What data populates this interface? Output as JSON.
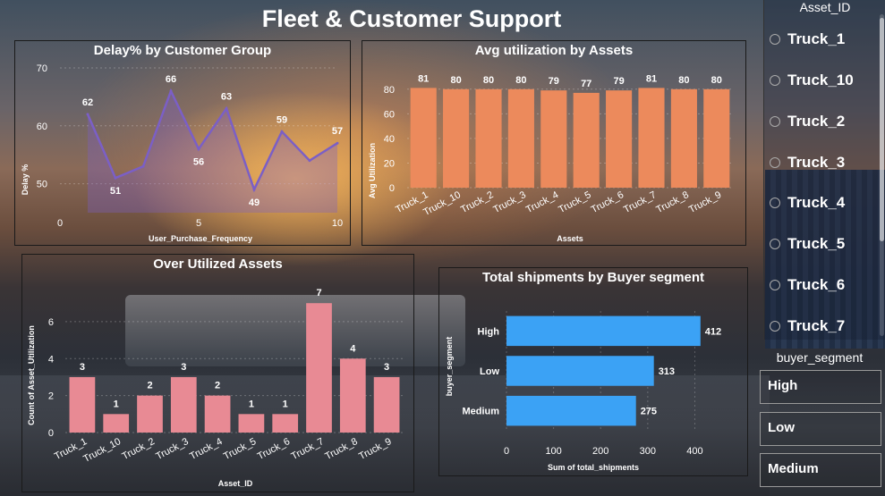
{
  "dashboard": {
    "title": "Fleet & Customer Support"
  },
  "delay_chart": {
    "title": "Delay% by Customer Group",
    "ylabel": "Delay %",
    "xlabel": "User_Purchase_Frequency",
    "y_ticks": [
      "50",
      "60",
      "70"
    ],
    "x_ticks": [
      "0",
      "5",
      "10"
    ],
    "chart_data": {
      "type": "area",
      "x": [
        1,
        2,
        3,
        4,
        5,
        6,
        7,
        8,
        9,
        10
      ],
      "values": [
        62,
        51,
        53,
        66,
        56,
        63,
        49,
        59,
        54,
        57
      ],
      "data_labels": [
        "62",
        "51",
        "",
        "66",
        "56",
        "63",
        "49",
        "59",
        "",
        "57"
      ],
      "xlim": [
        0,
        10
      ],
      "ylim": [
        45,
        70
      ],
      "color": "#7b5fc6"
    }
  },
  "util_chart": {
    "title": "Avg utilization by Assets",
    "ylabel": "Avg Utilization",
    "xlabel": "Assets",
    "y_ticks": [
      "0",
      "20",
      "40",
      "60",
      "80"
    ],
    "chart_data": {
      "type": "bar",
      "categories": [
        "Truck_1",
        "Truck_10",
        "Truck_2",
        "Truck_3",
        "Truck_4",
        "Truck_5",
        "Truck_6",
        "Truck_7",
        "Truck_8",
        "Truck_9"
      ],
      "values": [
        81,
        80,
        80,
        80,
        79,
        77,
        79,
        81,
        80,
        80
      ],
      "ylim": [
        0,
        90
      ],
      "color": "#ec8a5c"
    }
  },
  "over_chart": {
    "title": "Over Utilized Assets",
    "ylabel": "Count of Asset_Utilization",
    "xlabel": "Asset_ID",
    "y_ticks": [
      "0",
      "2",
      "4",
      "6"
    ],
    "chart_data": {
      "type": "bar",
      "categories": [
        "Truck_1",
        "Truck_10",
        "Truck_2",
        "Truck_3",
        "Truck_4",
        "Truck_5",
        "Truck_6",
        "Truck_7",
        "Truck_8",
        "Truck_9"
      ],
      "values": [
        3,
        1,
        2,
        3,
        2,
        1,
        1,
        7,
        4,
        3
      ],
      "ylim": [
        0,
        7.3
      ],
      "color": "#e88a94"
    }
  },
  "ship_chart": {
    "title": "Total shipments by Buyer segment",
    "ylabel": "buyer_segment",
    "xlabel": "Sum of total_shipments",
    "x_ticks": [
      "0",
      "100",
      "200",
      "300",
      "400"
    ],
    "chart_data": {
      "type": "bar",
      "orientation": "horizontal",
      "categories": [
        "High",
        "Low",
        "Medium"
      ],
      "values": [
        412,
        313,
        275
      ],
      "xlim": [
        0,
        420
      ],
      "color": "#3ba2f5"
    }
  },
  "asset_slicer": {
    "header": "Asset_ID",
    "items": [
      "Truck_1",
      "Truck_10",
      "Truck_2",
      "Truck_3",
      "Truck_4",
      "Truck_5",
      "Truck_6",
      "Truck_7"
    ]
  },
  "segment_slicer": {
    "header": "buyer_segment",
    "items": [
      "High",
      "Low",
      "Medium"
    ]
  }
}
